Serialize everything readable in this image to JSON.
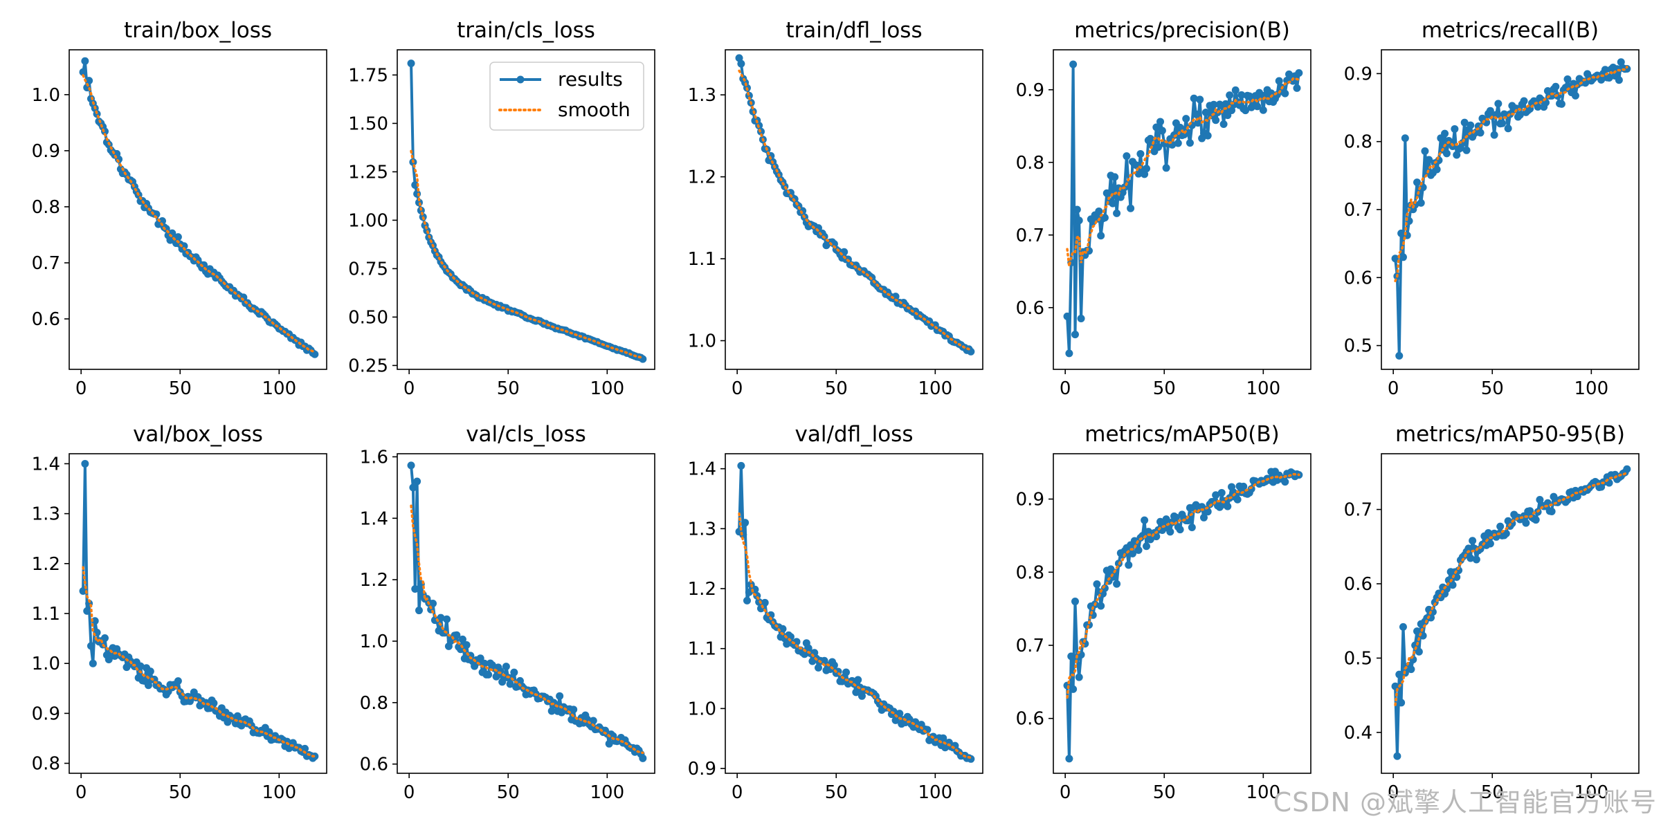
{
  "colors": {
    "results": "#1f77b4",
    "smooth": "#ff7f0e",
    "axes": "#000000",
    "background": "#ffffff"
  },
  "legend": {
    "entries": [
      "results",
      "smooth"
    ],
    "placement": "upper right of train/cls_loss panel"
  },
  "watermark": "CSDN @斌擎人工智能官方账号",
  "chart_data": [
    {
      "type": "line",
      "title": "train/box_loss",
      "xlim": [
        -6,
        124
      ],
      "ylim": [
        0.51,
        1.08
      ],
      "xticks": [
        0,
        50,
        100
      ],
      "xtick_labels": [
        "0",
        "50",
        "100"
      ],
      "yticks": [
        0.6,
        0.7,
        0.8,
        0.9,
        1.0
      ],
      "ytick_labels": [
        "0.6",
        "0.7",
        "0.8",
        "0.9",
        "1.0"
      ],
      "n_points": 118,
      "shape": "decay",
      "start": 1.04,
      "end": 0.535,
      "k": 22,
      "tail": 0.6,
      "noise": 0.008,
      "overrides": [
        [
          2,
          1.06
        ],
        [
          4,
          1.025
        ]
      ],
      "series": [
        {
          "name": "results"
        },
        {
          "name": "smooth"
        }
      ]
    },
    {
      "type": "line",
      "title": "train/cls_loss",
      "xlim": [
        -6,
        124
      ],
      "ylim": [
        0.23,
        1.88
      ],
      "xticks": [
        0,
        50,
        100
      ],
      "xtick_labels": [
        "0",
        "50",
        "100"
      ],
      "yticks": [
        0.25,
        0.5,
        0.75,
        1.0,
        1.25,
        1.5,
        1.75
      ],
      "ytick_labels": [
        "0.25",
        "0.50",
        "0.75",
        "1.00",
        "1.25",
        "1.50",
        "1.75"
      ],
      "n_points": 118,
      "shape": "decay",
      "start": 1.3,
      "end": 0.285,
      "k": 10,
      "tail": 0.42,
      "noise": 0.006,
      "overrides": [
        [
          1,
          1.81
        ],
        [
          2,
          1.3
        ]
      ],
      "series": [
        {
          "name": "results"
        },
        {
          "name": "smooth"
        }
      ]
    },
    {
      "type": "line",
      "title": "train/dfl_loss",
      "xlim": [
        -6,
        124
      ],
      "ylim": [
        0.965,
        1.355
      ],
      "xticks": [
        0,
        50,
        100
      ],
      "xtick_labels": [
        "0",
        "50",
        "100"
      ],
      "yticks": [
        1.0,
        1.1,
        1.2,
        1.3
      ],
      "ytick_labels": [
        "1.0",
        "1.1",
        "1.2",
        "1.3"
      ],
      "n_points": 118,
      "shape": "decay",
      "start": 1.345,
      "end": 0.985,
      "k": 18,
      "tail": 0.55,
      "noise": 0.006,
      "overrides": [
        [
          1,
          1.345
        ],
        [
          2,
          1.338
        ]
      ],
      "series": [
        {
          "name": "results"
        },
        {
          "name": "smooth"
        }
      ]
    },
    {
      "type": "line",
      "title": "metrics/precision(B)",
      "xlim": [
        -6,
        124
      ],
      "ylim": [
        0.515,
        0.955
      ],
      "xticks": [
        0,
        50,
        100
      ],
      "xtick_labels": [
        "0",
        "50",
        "100"
      ],
      "yticks": [
        0.6,
        0.7,
        0.8,
        0.9
      ],
      "ytick_labels": [
        "0.6",
        "0.7",
        "0.8",
        "0.9"
      ],
      "n_points": 118,
      "shape": "rise",
      "start": 0.64,
      "end": 0.92,
      "k": 35,
      "tail": 0.3,
      "noise": 0.035,
      "overrides": [
        [
          1,
          0.588
        ],
        [
          2,
          0.537
        ],
        [
          3,
          0.662
        ],
        [
          4,
          0.935
        ],
        [
          5,
          0.563
        ],
        [
          6,
          0.735
        ],
        [
          7,
          0.72
        ],
        [
          8,
          0.585
        ]
      ],
      "series": [
        {
          "name": "results"
        },
        {
          "name": "smooth"
        }
      ]
    },
    {
      "type": "line",
      "title": "metrics/recall(B)",
      "xlim": [
        -6,
        124
      ],
      "ylim": [
        0.465,
        0.935
      ],
      "xticks": [
        0,
        50,
        100
      ],
      "xtick_labels": [
        "0",
        "50",
        "100"
      ],
      "yticks": [
        0.5,
        0.6,
        0.7,
        0.8,
        0.9
      ],
      "ytick_labels": [
        "0.5",
        "0.6",
        "0.7",
        "0.8",
        "0.9"
      ],
      "n_points": 118,
      "shape": "rise",
      "start": 0.6,
      "end": 0.91,
      "k": 12,
      "tail": 0.4,
      "noise": 0.025,
      "overrides": [
        [
          1,
          0.628
        ],
        [
          2,
          0.602
        ],
        [
          3,
          0.485
        ],
        [
          4,
          0.665
        ],
        [
          5,
          0.63
        ],
        [
          6,
          0.805
        ]
      ],
      "series": [
        {
          "name": "results"
        },
        {
          "name": "smooth"
        }
      ]
    },
    {
      "type": "line",
      "title": "val/box_loss",
      "xlim": [
        -6,
        124
      ],
      "ylim": [
        0.78,
        1.42
      ],
      "xticks": [
        0,
        50,
        100
      ],
      "xtick_labels": [
        "0",
        "50",
        "100"
      ],
      "yticks": [
        0.8,
        0.9,
        1.0,
        1.1,
        1.2,
        1.3,
        1.4
      ],
      "ytick_labels": [
        "0.8",
        "0.9",
        "1.0",
        "1.1",
        "1.2",
        "1.3",
        "1.4"
      ],
      "n_points": 118,
      "shape": "decay",
      "start": 1.1,
      "end": 0.815,
      "k": 12,
      "tail": 0.75,
      "noise": 0.018,
      "overrides": [
        [
          1,
          1.145
        ],
        [
          2,
          1.4
        ],
        [
          3,
          1.105
        ],
        [
          4,
          1.12
        ],
        [
          5,
          1.035
        ],
        [
          6,
          1.0
        ]
      ],
      "series": [
        {
          "name": "results"
        },
        {
          "name": "smooth"
        }
      ]
    },
    {
      "type": "line",
      "title": "val/cls_loss",
      "xlim": [
        -6,
        124
      ],
      "ylim": [
        0.57,
        1.61
      ],
      "xticks": [
        0,
        50,
        100
      ],
      "xtick_labels": [
        "0",
        "50",
        "100"
      ],
      "yticks": [
        0.6,
        0.8,
        1.0,
        1.2,
        1.4,
        1.6
      ],
      "ytick_labels": [
        "0.6",
        "0.8",
        "1.0",
        "1.2",
        "1.4",
        "1.6"
      ],
      "n_points": 118,
      "shape": "decay",
      "start": 1.3,
      "end": 0.635,
      "k": 10,
      "tail": 0.62,
      "noise": 0.035,
      "overrides": [
        [
          1,
          1.572
        ],
        [
          2,
          1.5
        ],
        [
          3,
          1.17
        ],
        [
          4,
          1.52
        ],
        [
          5,
          1.1
        ]
      ],
      "series": [
        {
          "name": "results"
        },
        {
          "name": "smooth"
        }
      ]
    },
    {
      "type": "line",
      "title": "val/dfl_loss",
      "xlim": [
        -6,
        124
      ],
      "ylim": [
        0.892,
        1.425
      ],
      "xticks": [
        0,
        50,
        100
      ],
      "xtick_labels": [
        "0",
        "50",
        "100"
      ],
      "yticks": [
        0.9,
        1.0,
        1.1,
        1.2,
        1.3,
        1.4
      ],
      "ytick_labels": [
        "0.9",
        "1.0",
        "1.1",
        "1.2",
        "1.3",
        "1.4"
      ],
      "n_points": 118,
      "shape": "decay",
      "start": 1.25,
      "end": 0.915,
      "k": 12,
      "tail": 0.72,
      "noise": 0.015,
      "overrides": [
        [
          1,
          1.295
        ],
        [
          2,
          1.405
        ],
        [
          3,
          1.29
        ],
        [
          4,
          1.31
        ],
        [
          5,
          1.18
        ]
      ],
      "series": [
        {
          "name": "results"
        },
        {
          "name": "smooth"
        }
      ]
    },
    {
      "type": "line",
      "title": "metrics/mAP50(B)",
      "xlim": [
        -6,
        124
      ],
      "ylim": [
        0.525,
        0.962
      ],
      "xticks": [
        0,
        50,
        100
      ],
      "xtick_labels": [
        "0",
        "50",
        "100"
      ],
      "yticks": [
        0.6,
        0.7,
        0.8,
        0.9
      ],
      "ytick_labels": [
        "0.6",
        "0.7",
        "0.8",
        "0.9"
      ],
      "n_points": 118,
      "shape": "rise",
      "start": 0.6,
      "end": 0.94,
      "k": 14,
      "tail": 0.35,
      "noise": 0.02,
      "overrides": [
        [
          1,
          0.645
        ],
        [
          2,
          0.545
        ],
        [
          3,
          0.685
        ],
        [
          4,
          0.64
        ],
        [
          5,
          0.76
        ]
      ],
      "series": [
        {
          "name": "results"
        },
        {
          "name": "smooth"
        }
      ]
    },
    {
      "type": "line",
      "title": "metrics/mAP50-95(B)",
      "xlim": [
        -6,
        124
      ],
      "ylim": [
        0.345,
        0.775
      ],
      "xticks": [
        0,
        50,
        100
      ],
      "xtick_labels": [
        "0",
        "50",
        "100"
      ],
      "yticks": [
        0.4,
        0.5,
        0.6,
        0.7
      ],
      "ytick_labels": [
        "0.4",
        "0.5",
        "0.6",
        "0.7"
      ],
      "n_points": 118,
      "shape": "rise",
      "start": 0.41,
      "end": 0.752,
      "k": 18,
      "tail": 0.38,
      "noise": 0.015,
      "overrides": [
        [
          1,
          0.462
        ],
        [
          2,
          0.368
        ],
        [
          3,
          0.478
        ],
        [
          4,
          0.44
        ],
        [
          5,
          0.542
        ]
      ],
      "series": [
        {
          "name": "results"
        },
        {
          "name": "smooth"
        }
      ]
    }
  ]
}
